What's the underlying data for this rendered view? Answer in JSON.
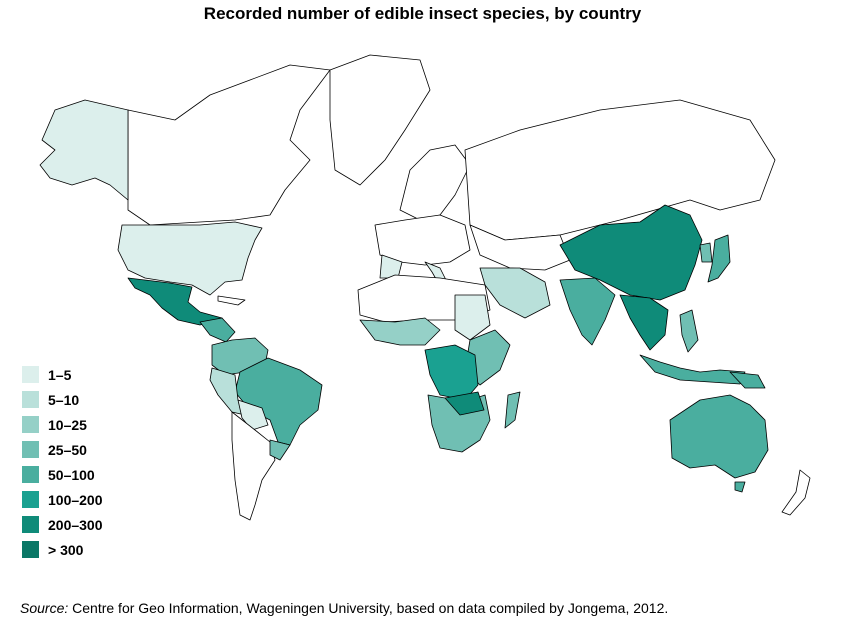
{
  "title": "Recorded number of edible insect species, by country",
  "legend": [
    {
      "label": "1–5",
      "color": "#dcefec"
    },
    {
      "label": "5–10",
      "color": "#b9e0da"
    },
    {
      "label": "10–25",
      "color": "#95d0c7"
    },
    {
      "label": "25–50",
      "color": "#70bfb3"
    },
    {
      "label": "50–100",
      "color": "#4aae9f"
    },
    {
      "label": "100–200",
      "color": "#1aa191"
    },
    {
      "label": "200–300",
      "color": "#0f8b79"
    },
    {
      "label": "> 300",
      "color": "#0a7766"
    }
  ],
  "source": {
    "prefix": "Source:",
    "text": " Centre for Geo Information, Wageningen University, based on data compiled by Jongema, 2012."
  },
  "regions": [
    {
      "name": "alaska",
      "class": "1–5"
    },
    {
      "name": "usa",
      "class": "1–5"
    },
    {
      "name": "mexico",
      "class": "200–300"
    },
    {
      "name": "colombia-venezuela",
      "class": "25–50"
    },
    {
      "name": "brazil",
      "class": "50–100"
    },
    {
      "name": "peru",
      "class": "5–10"
    },
    {
      "name": "china",
      "class": "200–300"
    },
    {
      "name": "india",
      "class": "50–100"
    },
    {
      "name": "japan",
      "class": "50–100"
    },
    {
      "name": "thailand-indochina",
      "class": "200–300"
    },
    {
      "name": "indonesia",
      "class": "50–100"
    },
    {
      "name": "png",
      "class": "50–100"
    },
    {
      "name": "australia",
      "class": "50–100"
    },
    {
      "name": "dr-congo",
      "class": "100–200"
    },
    {
      "name": "southern-africa",
      "class": "25–50"
    },
    {
      "name": "madagascar",
      "class": "25–50"
    },
    {
      "name": "west-africa",
      "class": "10–25"
    },
    {
      "name": "sudan",
      "class": "1–5"
    },
    {
      "name": "arabia",
      "class": "5–10"
    }
  ]
}
